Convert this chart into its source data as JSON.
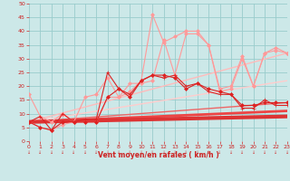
{
  "background_color": "#cce8e8",
  "grid_color": "#99cccc",
  "xlabel": "Vent moyen/en rafales ( km/h )",
  "xlabel_color": "#cc2222",
  "tick_color": "#cc2222",
  "xlim": [
    0,
    23
  ],
  "ylim": [
    0,
    50
  ],
  "yticks": [
    0,
    5,
    10,
    15,
    20,
    25,
    30,
    35,
    40,
    45,
    50
  ],
  "xticks": [
    0,
    1,
    2,
    3,
    4,
    5,
    6,
    7,
    8,
    9,
    10,
    11,
    12,
    13,
    14,
    15,
    16,
    17,
    18,
    19,
    20,
    21,
    22,
    23
  ],
  "series": [
    {
      "x": [
        0,
        1,
        2,
        3,
        4,
        5,
        6,
        7,
        8,
        9,
        10,
        11,
        12,
        13,
        14,
        15,
        16,
        17,
        18,
        19,
        20,
        21,
        22,
        23
      ],
      "y": [
        7,
        5,
        4,
        7,
        7,
        7,
        7,
        16,
        19,
        16,
        22,
        24,
        24,
        23,
        19,
        21,
        19,
        18,
        17,
        13,
        13,
        14,
        14,
        14
      ],
      "color": "#dd2222",
      "linewidth": 0.8,
      "marker": "D",
      "markersize": 2.0,
      "zorder": 5
    },
    {
      "x": [
        0,
        1,
        2,
        3,
        4,
        5,
        6,
        7,
        8,
        9,
        10,
        11,
        12,
        13,
        14,
        15,
        16,
        17,
        18,
        19,
        20,
        21,
        22,
        23
      ],
      "y": [
        7,
        9,
        4,
        10,
        7,
        8,
        8,
        25,
        19,
        17,
        22,
        24,
        23,
        24,
        20,
        21,
        18,
        17,
        17,
        12,
        12,
        15,
        13,
        13
      ],
      "color": "#dd2222",
      "linewidth": 0.8,
      "marker": "+",
      "markersize": 3.0,
      "zorder": 4
    },
    {
      "x": [
        0,
        1,
        2,
        3,
        4,
        5,
        6,
        7,
        8,
        9,
        10,
        11,
        12,
        13,
        14,
        15,
        16,
        17,
        18,
        19,
        20,
        21,
        22,
        23
      ],
      "y": [
        17,
        9,
        7,
        10,
        7,
        16,
        17,
        23,
        16,
        21,
        21,
        22,
        37,
        24,
        39,
        39,
        35,
        18,
        19,
        30,
        20,
        32,
        33,
        32
      ],
      "color": "#ff9999",
      "linewidth": 0.8,
      "marker": "D",
      "markersize": 2.0,
      "zorder": 3
    },
    {
      "x": [
        0,
        1,
        2,
        3,
        4,
        5,
        6,
        7,
        8,
        9,
        10,
        11,
        12,
        13,
        14,
        15,
        16,
        17,
        18,
        19,
        20,
        21,
        22,
        23
      ],
      "y": [
        7,
        5,
        4,
        6,
        7,
        7,
        7,
        16,
        16,
        18,
        22,
        46,
        36,
        38,
        40,
        40,
        35,
        19,
        20,
        31,
        20,
        32,
        34,
        32
      ],
      "color": "#ff9999",
      "linewidth": 0.8,
      "marker": "D",
      "markersize": 2.0,
      "zorder": 3
    },
    {
      "x": [
        0,
        23
      ],
      "y": [
        7,
        32
      ],
      "color": "#ffbbbb",
      "linewidth": 1.0,
      "marker": null,
      "markersize": 0,
      "zorder": 2
    },
    {
      "x": [
        0,
        23
      ],
      "y": [
        7,
        22
      ],
      "color": "#ffcccc",
      "linewidth": 1.0,
      "marker": null,
      "markersize": 0,
      "zorder": 2
    },
    {
      "x": [
        0,
        23
      ],
      "y": [
        7,
        14
      ],
      "color": "#ee6666",
      "linewidth": 1.0,
      "marker": null,
      "markersize": 0,
      "zorder": 2
    },
    {
      "x": [
        0,
        23
      ],
      "y": [
        7,
        11
      ],
      "color": "#ee4444",
      "linewidth": 2.0,
      "marker": null,
      "markersize": 0,
      "zorder": 2
    },
    {
      "x": [
        0,
        23
      ],
      "y": [
        7,
        9
      ],
      "color": "#dd3333",
      "linewidth": 3.0,
      "marker": null,
      "markersize": 0,
      "zorder": 2
    }
  ],
  "axis_fontsize": 5.5,
  "tick_fontsize": 4.5
}
